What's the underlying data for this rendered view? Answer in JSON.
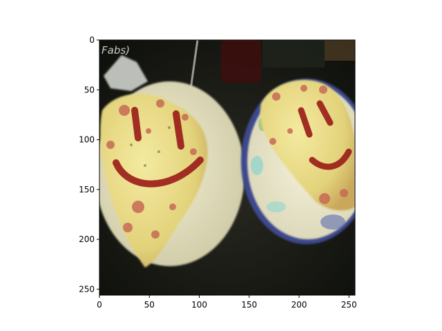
{
  "figure": {
    "image": {
      "subject": "two omelette plates with ketchup smiley faces",
      "watermark_text": "Fabs)",
      "colors": {
        "background_dark": "#121410",
        "plate_left": "#e9e6c6",
        "plate_right": "#ece8cf",
        "plate_right_rim": "#3c4a8e",
        "omelette": "#ecdf8a",
        "ketchup": "#9c1f1a",
        "ham": "#c76a55"
      }
    },
    "axes": {
      "x_ticks": [
        {
          "value": 0,
          "label": "0"
        },
        {
          "value": 50,
          "label": "50"
        },
        {
          "value": 100,
          "label": "100"
        },
        {
          "value": 150,
          "label": "150"
        },
        {
          "value": 200,
          "label": "200"
        },
        {
          "value": 250,
          "label": "250"
        }
      ],
      "y_ticks": [
        {
          "value": 0,
          "label": "0"
        },
        {
          "value": 50,
          "label": "50"
        },
        {
          "value": 100,
          "label": "100"
        },
        {
          "value": 150,
          "label": "150"
        },
        {
          "value": 200,
          "label": "200"
        },
        {
          "value": 250,
          "label": "250"
        }
      ],
      "x_range": [
        0,
        256
      ],
      "y_range": [
        256,
        0
      ]
    }
  }
}
